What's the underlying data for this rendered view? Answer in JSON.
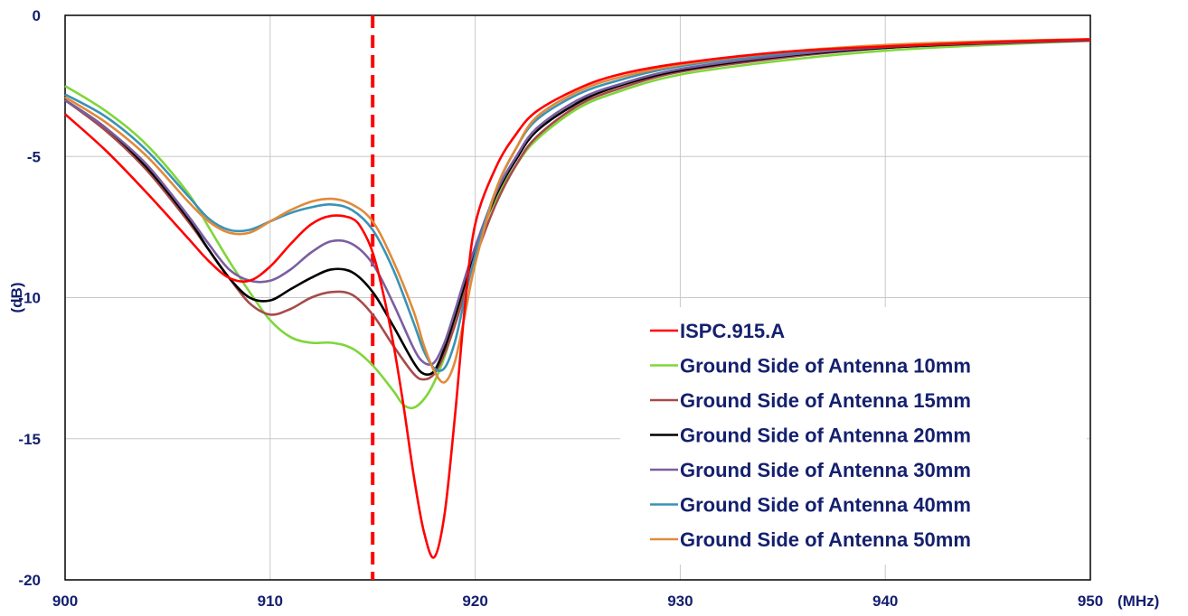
{
  "chart_data": {
    "type": "line",
    "xlabel": "(MHz)",
    "ylabel": "(dB)",
    "xlim": [
      900,
      950
    ],
    "ylim": [
      -20,
      0
    ],
    "xticks": [
      900,
      910,
      920,
      930,
      940,
      950
    ],
    "yticks": [
      0,
      -5,
      -10,
      -15,
      -20
    ],
    "grid": true,
    "legend_position": "bottom-right",
    "marker_line": {
      "x": 915,
      "color": "#ff0000",
      "style": "dashed"
    },
    "series": [
      {
        "name": "ISPC.915.A",
        "color": "#ff0000",
        "x": [
          900,
          902,
          904,
          906,
          907,
          908,
          909,
          910,
          911,
          912,
          913,
          914,
          914.5,
          915,
          915.5,
          916,
          916.5,
          917,
          917.5,
          918,
          918.5,
          919,
          919.5,
          920,
          921,
          922,
          923,
          925,
          927,
          930,
          935,
          940,
          945,
          950
        ],
        "y": [
          -3.5,
          -4.8,
          -6.3,
          -7.9,
          -8.7,
          -9.3,
          -9.4,
          -8.9,
          -8.1,
          -7.4,
          -7.1,
          -7.2,
          -7.6,
          -8.4,
          -9.8,
          -11.6,
          -13.8,
          -16.3,
          -18.3,
          -19.2,
          -17.7,
          -14.3,
          -10.3,
          -7.4,
          -5.4,
          -4.2,
          -3.4,
          -2.6,
          -2.1,
          -1.7,
          -1.3,
          -1.1,
          -0.95,
          -0.85
        ]
      },
      {
        "name": "Ground Side of Antenna 10mm",
        "color": "#7fd63a",
        "x": [
          900,
          902,
          904,
          906,
          907,
          908,
          909,
          910,
          911,
          912,
          913,
          914,
          915,
          916,
          916.5,
          917,
          917.5,
          918,
          918.5,
          919,
          919.5,
          920,
          921,
          922,
          923,
          925,
          927,
          930,
          935,
          940,
          945,
          950
        ],
        "y": [
          -2.5,
          -3.4,
          -4.6,
          -6.3,
          -7.5,
          -8.7,
          -9.8,
          -10.8,
          -11.4,
          -11.6,
          -11.6,
          -11.8,
          -12.4,
          -13.3,
          -13.8,
          -13.9,
          -13.6,
          -13.0,
          -12.1,
          -10.9,
          -9.6,
          -8.3,
          -6.5,
          -5.3,
          -4.4,
          -3.3,
          -2.7,
          -2.1,
          -1.6,
          -1.25,
          -1.05,
          -0.9
        ]
      },
      {
        "name": "Ground Side of Antenna 15mm",
        "color": "#a84a4a",
        "x": [
          900,
          902,
          904,
          906,
          907,
          908,
          909,
          910,
          911,
          912,
          913,
          914,
          915,
          916,
          917,
          917.5,
          918,
          918.5,
          919,
          919.5,
          920,
          921,
          922,
          923,
          925,
          927,
          930,
          935,
          940,
          945,
          950
        ],
        "y": [
          -3.0,
          -4.1,
          -5.5,
          -7.3,
          -8.3,
          -9.3,
          -10.2,
          -10.6,
          -10.4,
          -10.0,
          -9.8,
          -9.9,
          -10.6,
          -11.7,
          -12.7,
          -12.9,
          -12.7,
          -12.0,
          -11.0,
          -9.8,
          -8.6,
          -6.7,
          -5.3,
          -4.3,
          -3.2,
          -2.6,
          -2.0,
          -1.5,
          -1.15,
          -1.0,
          -0.9
        ]
      },
      {
        "name": "Ground Side of Antenna 20mm",
        "color": "#000000",
        "x": [
          900,
          902,
          904,
          906,
          907,
          908,
          909,
          910,
          911,
          912,
          913,
          914,
          915,
          916,
          917,
          917.5,
          918,
          918.5,
          919,
          919.5,
          920,
          921,
          922,
          923,
          925,
          927,
          930,
          935,
          940,
          945,
          950
        ],
        "y": [
          -3.0,
          -4.0,
          -5.4,
          -7.2,
          -8.3,
          -9.3,
          -10.0,
          -10.1,
          -9.7,
          -9.3,
          -9.0,
          -9.1,
          -9.8,
          -11.0,
          -12.3,
          -12.7,
          -12.6,
          -11.8,
          -10.7,
          -9.5,
          -8.3,
          -6.4,
          -5.1,
          -4.1,
          -3.1,
          -2.5,
          -1.95,
          -1.45,
          -1.15,
          -0.98,
          -0.88
        ]
      },
      {
        "name": "Ground Side of Antenna 30mm",
        "color": "#7b5ea0",
        "x": [
          900,
          902,
          904,
          906,
          907,
          908,
          909,
          910,
          911,
          912,
          913,
          914,
          915,
          916,
          917,
          917.5,
          918,
          918.5,
          919,
          919.5,
          920,
          921,
          922,
          923,
          925,
          927,
          930,
          935,
          940,
          945,
          950
        ],
        "y": [
          -3.0,
          -4.0,
          -5.3,
          -7.1,
          -8.1,
          -9.0,
          -9.4,
          -9.4,
          -9.0,
          -8.4,
          -8.0,
          -8.1,
          -8.8,
          -10.2,
          -11.8,
          -12.3,
          -12.3,
          -11.6,
          -10.5,
          -9.3,
          -8.2,
          -6.3,
          -5.0,
          -4.0,
          -3.0,
          -2.45,
          -1.9,
          -1.42,
          -1.12,
          -0.97,
          -0.87
        ]
      },
      {
        "name": "Ground Side of Antenna 40mm",
        "color": "#3a93b5",
        "x": [
          900,
          902,
          904,
          906,
          907,
          908,
          909,
          910,
          911,
          912,
          913,
          914,
          915,
          916,
          917,
          917.5,
          918,
          918.5,
          919,
          919.5,
          920,
          921,
          922,
          923,
          925,
          927,
          930,
          935,
          940,
          945,
          950
        ],
        "y": [
          -2.8,
          -3.6,
          -4.8,
          -6.4,
          -7.2,
          -7.6,
          -7.6,
          -7.3,
          -7.0,
          -6.8,
          -6.7,
          -6.9,
          -7.6,
          -9.0,
          -10.9,
          -11.9,
          -12.5,
          -12.5,
          -11.6,
          -10.0,
          -8.5,
          -6.2,
          -4.7,
          -3.7,
          -2.8,
          -2.3,
          -1.8,
          -1.35,
          -1.08,
          -0.93,
          -0.85
        ]
      },
      {
        "name": "Ground Side of Antenna 50mm",
        "color": "#e08a3a",
        "x": [
          900,
          902,
          904,
          906,
          907,
          908,
          909,
          910,
          911,
          912,
          913,
          914,
          915,
          916,
          917,
          917.5,
          918,
          918.5,
          919,
          919.5,
          920,
          921,
          922,
          923,
          925,
          927,
          930,
          935,
          940,
          945,
          950
        ],
        "y": [
          -2.9,
          -3.8,
          -5.0,
          -6.6,
          -7.3,
          -7.7,
          -7.7,
          -7.3,
          -6.9,
          -6.6,
          -6.5,
          -6.7,
          -7.3,
          -8.7,
          -10.5,
          -11.7,
          -12.6,
          -13.0,
          -12.3,
          -10.6,
          -8.8,
          -6.2,
          -4.7,
          -3.6,
          -2.7,
          -2.2,
          -1.75,
          -1.3,
          -1.05,
          -0.92,
          -0.84
        ]
      }
    ]
  }
}
